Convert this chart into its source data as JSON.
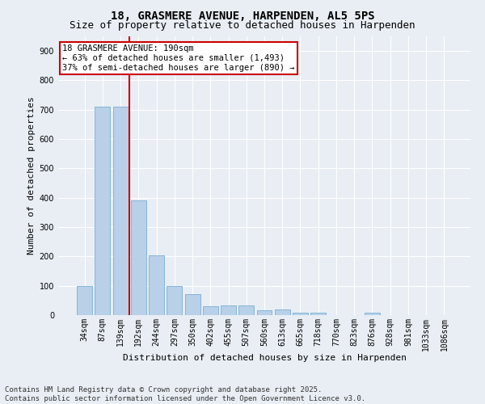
{
  "title": "18, GRASMERE AVENUE, HARPENDEN, AL5 5PS",
  "subtitle": "Size of property relative to detached houses in Harpenden",
  "xlabel": "Distribution of detached houses by size in Harpenden",
  "ylabel": "Number of detached properties",
  "categories": [
    "34sqm",
    "87sqm",
    "139sqm",
    "192sqm",
    "244sqm",
    "297sqm",
    "350sqm",
    "402sqm",
    "455sqm",
    "507sqm",
    "560sqm",
    "613sqm",
    "665sqm",
    "718sqm",
    "770sqm",
    "823sqm",
    "876sqm",
    "928sqm",
    "981sqm",
    "1033sqm",
    "1086sqm"
  ],
  "values": [
    100,
    710,
    710,
    390,
    205,
    100,
    72,
    30,
    32,
    32,
    17,
    20,
    8,
    7,
    0,
    0,
    8,
    0,
    0,
    0,
    0
  ],
  "bar_color": "#b8d0e8",
  "bar_edge_color": "#7aafd4",
  "property_line_index": 2.5,
  "property_line_color": "#cc0000",
  "annotation_text": "18 GRASMERE AVENUE: 190sqm\n← 63% of detached houses are smaller (1,493)\n37% of semi-detached houses are larger (890) →",
  "annotation_box_facecolor": "#ffffff",
  "annotation_box_edgecolor": "#cc0000",
  "ylim": [
    0,
    950
  ],
  "yticks": [
    0,
    100,
    200,
    300,
    400,
    500,
    600,
    700,
    800,
    900
  ],
  "footnote": "Contains HM Land Registry data © Crown copyright and database right 2025.\nContains public sector information licensed under the Open Government Licence v3.0.",
  "background_color": "#e8eef4",
  "grid_color": "#ffffff",
  "title_fontsize": 10,
  "subtitle_fontsize": 9,
  "xlabel_fontsize": 8,
  "ylabel_fontsize": 8,
  "tick_fontsize": 7,
  "annotation_fontsize": 7.5,
  "footnote_fontsize": 6.5
}
